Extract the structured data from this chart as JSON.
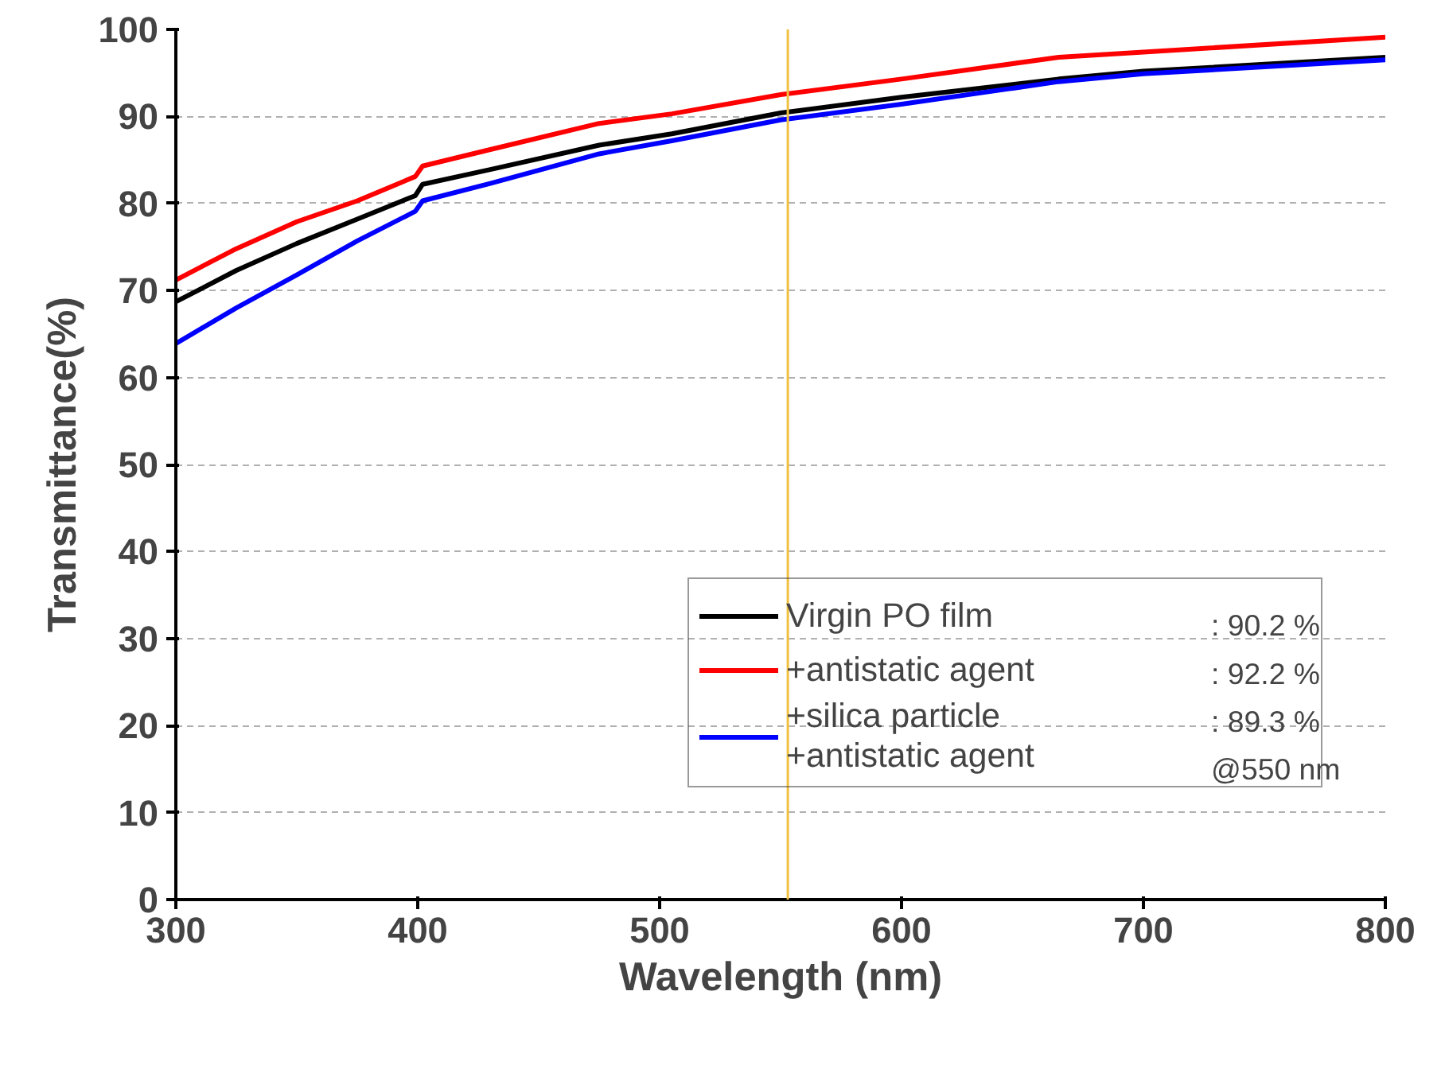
{
  "chart_data": {
    "type": "line",
    "xlabel": "Wavelength (nm)",
    "ylabel": "Transmittance(%)",
    "x": [
      300,
      325,
      350,
      375,
      399,
      402,
      430,
      475,
      505,
      550,
      600,
      665,
      700,
      800
    ],
    "series": [
      {
        "name": "Virgin PO film",
        "color": "#000000",
        "values": [
          68.7,
          72.3,
          75.4,
          78.2,
          80.9,
          82.2,
          83.9,
          86.7,
          88.0,
          90.4,
          92.2,
          94.3,
          95.2,
          96.8
        ]
      },
      {
        "name": "+antistatic agent",
        "color": "#ff0000",
        "values": [
          71.2,
          74.8,
          77.9,
          80.3,
          83.1,
          84.3,
          86.2,
          89.2,
          90.3,
          92.5,
          94.3,
          96.8,
          97.4,
          99.1
        ]
      },
      {
        "name": "+silica particle\n+antistatic agent",
        "color": "#0000ff",
        "values": [
          63.9,
          68.0,
          71.8,
          75.7,
          79.1,
          80.3,
          82.3,
          85.7,
          87.2,
          89.6,
          91.4,
          94.0,
          94.9,
          96.5
        ]
      }
    ],
    "xlim": [
      300,
      800
    ],
    "ylim": [
      0,
      100
    ],
    "xticks": [
      300,
      400,
      500,
      600,
      700,
      800
    ],
    "yticks": [
      0,
      10,
      20,
      30,
      40,
      50,
      60,
      70,
      80,
      90,
      100
    ],
    "grid": "y",
    "legend": "bottom right",
    "ref_lines": [
      {
        "axis": "x",
        "value": 553,
        "color": "#f0c040"
      }
    ],
    "annotations": [
      ": 90.2 %",
      ": 92.2 %",
      ": 89.3 %",
      "@550 nm"
    ]
  }
}
